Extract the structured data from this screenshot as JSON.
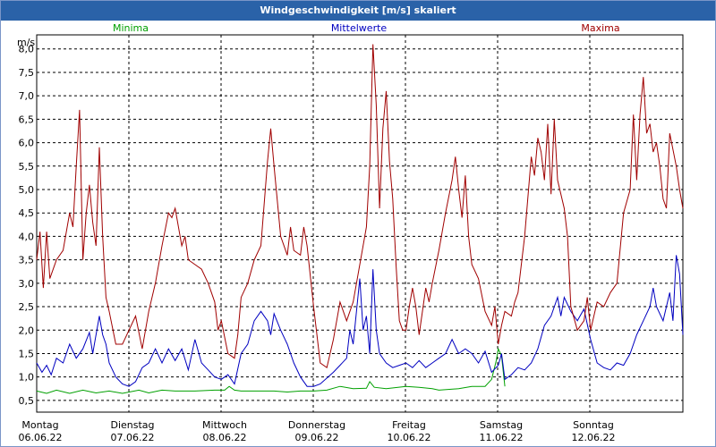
{
  "window_title": "Windgeschwindigkeit [m/s] skaliert",
  "chart_data": {
    "type": "line",
    "title": "Windgeschwindigkeit [m/s] skaliert",
    "ylabel": "m/s",
    "ylim": [
      0.25,
      8.3
    ],
    "yticks": [
      "0,5",
      "1,0",
      "1,5",
      "2,0",
      "2,5",
      "3,0",
      "3,5",
      "4,0",
      "4,5",
      "5,0",
      "5,5",
      "6,0",
      "6,5",
      "7,0",
      "7,5",
      "8,0"
    ],
    "ytick_values": [
      0.5,
      1.0,
      1.5,
      2.0,
      2.5,
      3.0,
      3.5,
      4.0,
      4.5,
      5.0,
      5.5,
      6.0,
      6.5,
      7.0,
      7.5,
      8.0
    ],
    "days": [
      {
        "weekday": "Montag",
        "date": "06.06.22"
      },
      {
        "weekday": "Dienstag",
        "date": "07.06.22"
      },
      {
        "weekday": "Mittwoch",
        "date": "08.06.22"
      },
      {
        "weekday": "Donnerstag",
        "date": "09.06.22"
      },
      {
        "weekday": "Freitag",
        "date": "10.06.22"
      },
      {
        "weekday": "Samstag",
        "date": "11.06.22"
      },
      {
        "weekday": "Sonntag",
        "date": "12.06.22"
      }
    ],
    "x_range_days": [
      0,
      7
    ],
    "series": [
      {
        "name": "Minima",
        "color": "#00a000",
        "points": [
          [
            0,
            0.7
          ],
          [
            0.15,
            0.65
          ],
          [
            0.3,
            0.72
          ],
          [
            0.5,
            0.65
          ],
          [
            0.7,
            0.72
          ],
          [
            0.9,
            0.66
          ],
          [
            1.1,
            0.7
          ],
          [
            1.3,
            0.65
          ],
          [
            1.55,
            0.72
          ],
          [
            1.7,
            0.66
          ],
          [
            1.9,
            0.72
          ],
          [
            2.1,
            0.7
          ],
          [
            2.4,
            0.7
          ],
          [
            2.7,
            0.72
          ],
          [
            2.85,
            0.72
          ],
          [
            2.92,
            0.8
          ],
          [
            3.0,
            0.72
          ],
          [
            3.1,
            0.7
          ],
          [
            3.3,
            0.7
          ],
          [
            3.6,
            0.7
          ],
          [
            3.8,
            0.68
          ],
          [
            4.0,
            0.7
          ],
          [
            4.2,
            0.7
          ],
          [
            4.4,
            0.72
          ],
          [
            4.6,
            0.8
          ],
          [
            4.8,
            0.75
          ],
          [
            5.0,
            0.76
          ],
          [
            5.05,
            0.9
          ],
          [
            5.12,
            0.78
          ],
          [
            5.3,
            0.75
          ],
          [
            5.6,
            0.8
          ],
          [
            5.8,
            0.78
          ],
          [
            6.0,
            0.75
          ],
          [
            6.1,
            0.72
          ],
          [
            6.4,
            0.75
          ],
          [
            6.6,
            0.8
          ],
          [
            6.8,
            0.8
          ],
          [
            6.9,
            0.95
          ],
          [
            6.97,
            1.35
          ],
          [
            7.0,
            1.6
          ],
          [
            7.05,
            1.45
          ],
          [
            7.1,
            0.8
          ]
        ]
      },
      {
        "name": "Mittelwerte",
        "color": "#0000c0",
        "points": [
          [
            0,
            1.3
          ],
          [
            0.08,
            1.1
          ],
          [
            0.15,
            1.25
          ],
          [
            0.22,
            1.05
          ],
          [
            0.3,
            1.4
          ],
          [
            0.4,
            1.3
          ],
          [
            0.5,
            1.7
          ],
          [
            0.6,
            1.4
          ],
          [
            0.7,
            1.6
          ],
          [
            0.8,
            1.95
          ],
          [
            0.85,
            1.5
          ],
          [
            0.9,
            1.9
          ],
          [
            0.95,
            2.3
          ],
          [
            1.0,
            1.9
          ],
          [
            1.05,
            1.7
          ],
          [
            1.1,
            1.3
          ],
          [
            1.2,
            1.0
          ],
          [
            1.3,
            0.85
          ],
          [
            1.4,
            0.8
          ],
          [
            1.5,
            0.9
          ],
          [
            1.6,
            1.2
          ],
          [
            1.7,
            1.3
          ],
          [
            1.8,
            1.6
          ],
          [
            1.9,
            1.3
          ],
          [
            2.0,
            1.6
          ],
          [
            2.1,
            1.35
          ],
          [
            2.2,
            1.6
          ],
          [
            2.3,
            1.15
          ],
          [
            2.4,
            1.8
          ],
          [
            2.5,
            1.3
          ],
          [
            2.6,
            1.15
          ],
          [
            2.7,
            1.0
          ],
          [
            2.8,
            0.95
          ],
          [
            2.9,
            1.05
          ],
          [
            3.0,
            0.85
          ],
          [
            3.1,
            1.5
          ],
          [
            3.2,
            1.7
          ],
          [
            3.3,
            2.2
          ],
          [
            3.4,
            2.4
          ],
          [
            3.5,
            2.2
          ],
          [
            3.55,
            1.9
          ],
          [
            3.6,
            2.35
          ],
          [
            3.7,
            2.0
          ],
          [
            3.8,
            1.7
          ],
          [
            3.9,
            1.3
          ],
          [
            4.0,
            1.0
          ],
          [
            4.1,
            0.8
          ],
          [
            4.2,
            0.8
          ],
          [
            4.3,
            0.85
          ],
          [
            4.5,
            1.1
          ],
          [
            4.6,
            1.25
          ],
          [
            4.7,
            1.4
          ],
          [
            4.75,
            2.0
          ],
          [
            4.8,
            1.7
          ],
          [
            4.9,
            3.1
          ],
          [
            4.95,
            2.0
          ],
          [
            5.0,
            2.3
          ],
          [
            5.05,
            1.5
          ],
          [
            5.1,
            3.3
          ],
          [
            5.15,
            2.0
          ],
          [
            5.2,
            1.5
          ],
          [
            5.3,
            1.3
          ],
          [
            5.4,
            1.2
          ],
          [
            5.5,
            1.25
          ],
          [
            5.6,
            1.3
          ],
          [
            5.7,
            1.2
          ],
          [
            5.8,
            1.35
          ],
          [
            5.9,
            1.2
          ],
          [
            6.0,
            1.3
          ],
          [
            6.1,
            1.4
          ],
          [
            6.2,
            1.5
          ],
          [
            6.3,
            1.8
          ],
          [
            6.4,
            1.5
          ],
          [
            6.5,
            1.6
          ],
          [
            6.6,
            1.5
          ],
          [
            6.7,
            1.3
          ],
          [
            6.8,
            1.55
          ],
          [
            6.9,
            1.1
          ],
          [
            7.0,
            1.25
          ],
          [
            7.05,
            1.5
          ],
          [
            7.1,
            0.95
          ],
          [
            7.2,
            1.05
          ],
          [
            7.3,
            1.2
          ],
          [
            7.4,
            1.15
          ],
          [
            7.5,
            1.3
          ],
          [
            7.6,
            1.6
          ],
          [
            7.7,
            2.1
          ],
          [
            7.8,
            2.3
          ],
          [
            7.9,
            2.7
          ],
          [
            7.95,
            2.3
          ],
          [
            8.0,
            2.7
          ],
          [
            8.1,
            2.4
          ],
          [
            8.2,
            2.2
          ],
          [
            8.3,
            2.45
          ],
          [
            8.4,
            1.8
          ],
          [
            8.5,
            1.3
          ],
          [
            8.6,
            1.2
          ],
          [
            8.7,
            1.15
          ],
          [
            8.8,
            1.3
          ],
          [
            8.9,
            1.25
          ],
          [
            9.0,
            1.5
          ],
          [
            9.1,
            1.9
          ],
          [
            9.2,
            2.2
          ],
          [
            9.3,
            2.5
          ],
          [
            9.35,
            2.9
          ],
          [
            9.4,
            2.5
          ],
          [
            9.5,
            2.2
          ],
          [
            9.6,
            2.8
          ],
          [
            9.65,
            2.2
          ],
          [
            9.7,
            3.6
          ],
          [
            9.75,
            3.2
          ],
          [
            9.8,
            1.9
          ]
        ]
      },
      {
        "name": "Maxima",
        "color": "#a00000",
        "points": [
          [
            0,
            3.5
          ],
          [
            0.05,
            4.1
          ],
          [
            0.1,
            2.9
          ],
          [
            0.15,
            4.1
          ],
          [
            0.2,
            3.1
          ],
          [
            0.3,
            3.5
          ],
          [
            0.4,
            3.7
          ],
          [
            0.5,
            4.5
          ],
          [
            0.55,
            4.2
          ],
          [
            0.6,
            5.5
          ],
          [
            0.65,
            6.7
          ],
          [
            0.7,
            3.5
          ],
          [
            0.75,
            4.5
          ],
          [
            0.8,
            5.1
          ],
          [
            0.85,
            4.3
          ],
          [
            0.9,
            3.8
          ],
          [
            0.95,
            5.9
          ],
          [
            1.0,
            4.0
          ],
          [
            1.05,
            2.7
          ],
          [
            1.1,
            2.4
          ],
          [
            1.2,
            1.7
          ],
          [
            1.3,
            1.7
          ],
          [
            1.4,
            2.0
          ],
          [
            1.5,
            2.3
          ],
          [
            1.6,
            1.6
          ],
          [
            1.7,
            2.4
          ],
          [
            1.8,
            3.0
          ],
          [
            1.9,
            3.8
          ],
          [
            2.0,
            4.5
          ],
          [
            2.05,
            4.4
          ],
          [
            2.1,
            4.6
          ],
          [
            2.2,
            3.8
          ],
          [
            2.25,
            4.0
          ],
          [
            2.3,
            3.5
          ],
          [
            2.4,
            3.4
          ],
          [
            2.5,
            3.3
          ],
          [
            2.6,
            3.0
          ],
          [
            2.7,
            2.6
          ],
          [
            2.75,
            2.0
          ],
          [
            2.8,
            2.2
          ],
          [
            2.9,
            1.5
          ],
          [
            3.0,
            1.4
          ],
          [
            3.05,
            1.9
          ],
          [
            3.1,
            2.7
          ],
          [
            3.2,
            3.0
          ],
          [
            3.3,
            3.5
          ],
          [
            3.4,
            3.8
          ],
          [
            3.5,
            5.6
          ],
          [
            3.55,
            6.3
          ],
          [
            3.6,
            5.5
          ],
          [
            3.7,
            4.0
          ],
          [
            3.8,
            3.6
          ],
          [
            3.85,
            4.2
          ],
          [
            3.9,
            3.7
          ],
          [
            4.0,
            3.6
          ],
          [
            4.05,
            4.2
          ],
          [
            4.1,
            3.8
          ],
          [
            4.2,
            2.5
          ],
          [
            4.3,
            1.3
          ],
          [
            4.4,
            1.2
          ],
          [
            4.5,
            1.8
          ],
          [
            4.6,
            2.6
          ],
          [
            4.7,
            2.2
          ],
          [
            4.8,
            2.6
          ],
          [
            4.9,
            3.4
          ],
          [
            5.0,
            4.2
          ],
          [
            5.05,
            5.5
          ],
          [
            5.1,
            8.1
          ],
          [
            5.15,
            6.8
          ],
          [
            5.2,
            4.6
          ],
          [
            5.25,
            6.3
          ],
          [
            5.3,
            7.1
          ],
          [
            5.35,
            5.6
          ],
          [
            5.4,
            4.8
          ],
          [
            5.45,
            3.4
          ],
          [
            5.5,
            2.2
          ],
          [
            5.55,
            2.0
          ],
          [
            5.6,
            2.0
          ],
          [
            5.65,
            2.5
          ],
          [
            5.7,
            2.9
          ],
          [
            5.75,
            2.5
          ],
          [
            5.8,
            1.9
          ],
          [
            5.9,
            2.9
          ],
          [
            5.95,
            2.6
          ],
          [
            6.0,
            3.0
          ],
          [
            6.1,
            3.7
          ],
          [
            6.2,
            4.5
          ],
          [
            6.3,
            5.2
          ],
          [
            6.35,
            5.7
          ],
          [
            6.4,
            5.0
          ],
          [
            6.45,
            4.4
          ],
          [
            6.5,
            5.3
          ],
          [
            6.55,
            4.0
          ],
          [
            6.6,
            3.4
          ],
          [
            6.7,
            3.1
          ],
          [
            6.8,
            2.4
          ],
          [
            6.9,
            2.1
          ],
          [
            6.95,
            2.5
          ],
          [
            7.0,
            1.7
          ],
          [
            7.05,
            2.1
          ],
          [
            7.1,
            2.4
          ],
          [
            7.2,
            2.3
          ],
          [
            7.25,
            2.6
          ],
          [
            7.3,
            2.8
          ],
          [
            7.4,
            4.0
          ],
          [
            7.5,
            5.7
          ],
          [
            7.55,
            5.3
          ],
          [
            7.6,
            6.1
          ],
          [
            7.65,
            5.8
          ],
          [
            7.7,
            5.2
          ],
          [
            7.75,
            6.4
          ],
          [
            7.8,
            4.9
          ],
          [
            7.85,
            6.5
          ],
          [
            7.9,
            5.2
          ],
          [
            8.0,
            4.6
          ],
          [
            8.05,
            4.0
          ],
          [
            8.1,
            2.5
          ],
          [
            8.2,
            2.0
          ],
          [
            8.3,
            2.2
          ],
          [
            8.35,
            2.7
          ],
          [
            8.4,
            2.0
          ],
          [
            8.5,
            2.6
          ],
          [
            8.6,
            2.5
          ],
          [
            8.7,
            2.8
          ],
          [
            8.8,
            3.0
          ],
          [
            8.9,
            4.5
          ],
          [
            9.0,
            5.0
          ],
          [
            9.05,
            6.6
          ],
          [
            9.1,
            5.2
          ],
          [
            9.15,
            6.6
          ],
          [
            9.2,
            7.4
          ],
          [
            9.25,
            6.2
          ],
          [
            9.3,
            6.4
          ],
          [
            9.35,
            5.8
          ],
          [
            9.4,
            6.0
          ],
          [
            9.45,
            5.5
          ],
          [
            9.5,
            4.8
          ],
          [
            9.55,
            4.6
          ],
          [
            9.6,
            6.2
          ],
          [
            9.7,
            5.5
          ],
          [
            9.75,
            5.0
          ],
          [
            9.8,
            4.6
          ]
        ]
      }
    ]
  }
}
